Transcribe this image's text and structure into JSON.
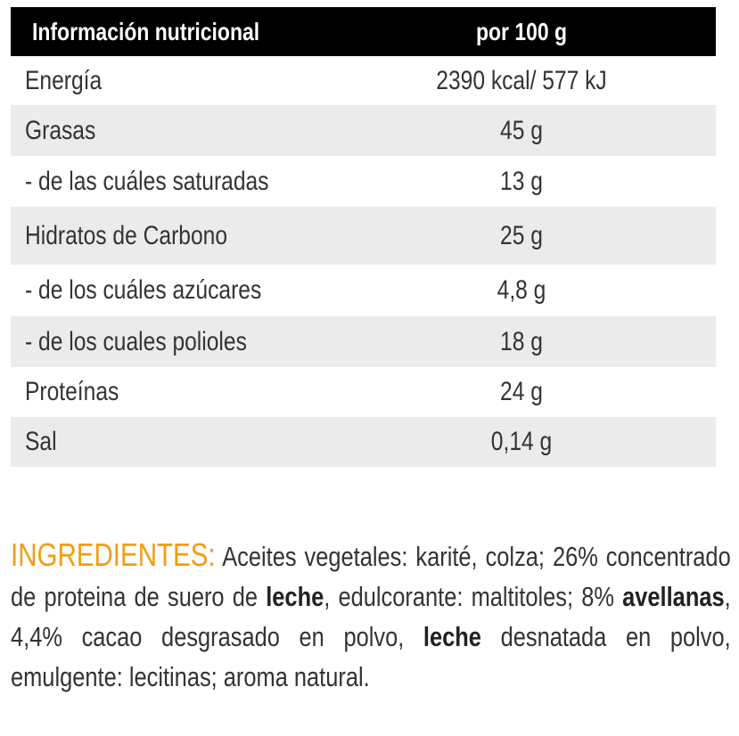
{
  "table": {
    "header": [
      "Información nutricional",
      "por 100 g"
    ],
    "rows": [
      [
        "Energía",
        "2390 kcal/ 577 kJ"
      ],
      [
        "Grasas",
        "45 g"
      ],
      [
        "- de las cuáles saturadas",
        "13 g"
      ],
      [
        "Hidratos de Carbono",
        "25 g"
      ],
      [
        "- de los cuáles azúcares",
        "4,8 g"
      ],
      [
        "- de los cuales polioles",
        "18 g"
      ],
      [
        "Proteínas",
        "24 g"
      ],
      [
        "Sal",
        "0,14 g"
      ]
    ]
  },
  "ingredients": {
    "label": "INGREDIENTES:",
    "parts": [
      "Aceites vegetales: karité, colza; 26% concentrado de proteina de suero de ",
      "leche",
      ", edulcorante: maltitoles; 8% ",
      "avellanas",
      ", 4,4% cacao desgrasado en polvo, ",
      "leche",
      " desnatada en polvo, emulgente: lecitinas; aroma natural."
    ]
  }
}
